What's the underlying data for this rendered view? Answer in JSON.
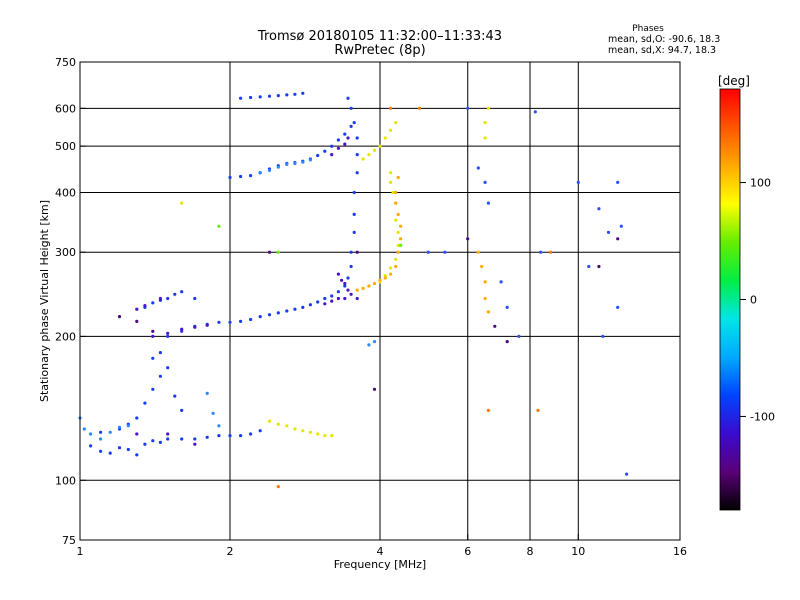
{
  "chart_data": {
    "type": "scatter",
    "title": "Tromsø 20180105 11:32:00–11:33:43",
    "subtitle": "RwPretec (8p)",
    "xlabel": "Frequency [MHz]",
    "ylabel": "Stationary phase Virtual Height [km]",
    "x_scale": "log",
    "y_scale": "log",
    "xlim": [
      1,
      16
    ],
    "ylim": [
      75,
      750
    ],
    "x_ticks": [
      1,
      2,
      4,
      6,
      8,
      10,
      16
    ],
    "y_ticks": [
      75,
      100,
      200,
      300,
      400,
      500,
      600,
      750
    ],
    "x_gridlines": [
      2,
      4,
      6,
      8,
      10
    ],
    "y_gridlines": [
      100,
      200,
      300,
      400,
      500,
      600
    ],
    "grid": true,
    "phases_info": {
      "heading": "Phases",
      "line_o": "mean, sd,O: -90.6, 18.3",
      "line_x": "mean, sd,X:  94.7, 18.3"
    },
    "colorbar": {
      "label": "[deg]",
      "range": [
        -180,
        180
      ],
      "ticks": [
        100,
        0,
        -100
      ],
      "colormap": [
        "#000000",
        "#5a0078",
        "#3a0bd0",
        "#0044ff",
        "#00aaff",
        "#00e6e6",
        "#00ee44",
        "#66ee00",
        "#ffff00",
        "#ffaa00",
        "#ff5500",
        "#ff0000"
      ]
    },
    "series": [
      {
        "phase_deg": -110,
        "color": "#1a3cf0",
        "points": [
          [
            1.05,
            118
          ],
          [
            1.1,
            115
          ],
          [
            1.15,
            114
          ],
          [
            1.2,
            117
          ],
          [
            1.25,
            116
          ],
          [
            1.3,
            113
          ],
          [
            1.35,
            119
          ],
          [
            1.4,
            121
          ],
          [
            1.45,
            120
          ],
          [
            1.5,
            122
          ],
          [
            1.6,
            122
          ],
          [
            1.7,
            122
          ],
          [
            1.8,
            123
          ],
          [
            1.9,
            124
          ],
          [
            2.0,
            124
          ],
          [
            2.1,
            124
          ],
          [
            2.2,
            125
          ],
          [
            2.3,
            127
          ],
          [
            1.1,
            126
          ],
          [
            1.2,
            128
          ],
          [
            1.25,
            131
          ],
          [
            1.3,
            135
          ],
          [
            1.35,
            145
          ],
          [
            1.4,
            155
          ],
          [
            1.45,
            165
          ],
          [
            1.5,
            172
          ],
          [
            1.55,
            150
          ],
          [
            1.6,
            140
          ],
          [
            1.4,
            180
          ],
          [
            1.45,
            185
          ],
          [
            1.5,
            200
          ],
          [
            1.6,
            205
          ],
          [
            1.7,
            210
          ],
          [
            1.8,
            212
          ],
          [
            1.9,
            214
          ],
          [
            2.0,
            214
          ],
          [
            2.1,
            215
          ],
          [
            2.2,
            217
          ],
          [
            2.3,
            220
          ],
          [
            2.4,
            222
          ],
          [
            2.5,
            224
          ],
          [
            2.6,
            226
          ],
          [
            2.7,
            228
          ],
          [
            2.8,
            230
          ],
          [
            2.9,
            233
          ],
          [
            3.0,
            236
          ],
          [
            3.1,
            240
          ],
          [
            3.2,
            243
          ],
          [
            3.3,
            248
          ],
          [
            3.4,
            255
          ],
          [
            3.45,
            265
          ],
          [
            3.5,
            280
          ],
          [
            3.5,
            300
          ],
          [
            3.55,
            330
          ],
          [
            3.55,
            360
          ],
          [
            3.55,
            400
          ],
          [
            3.6,
            440
          ],
          [
            3.6,
            480
          ],
          [
            3.6,
            520
          ],
          [
            3.55,
            560
          ],
          [
            3.5,
            600
          ],
          [
            3.45,
            630
          ],
          [
            1.35,
            230
          ],
          [
            1.4,
            235
          ],
          [
            1.45,
            238
          ],
          [
            1.5,
            240
          ],
          [
            1.55,
            245
          ],
          [
            1.6,
            248
          ],
          [
            1.7,
            240
          ],
          [
            2.0,
            430
          ],
          [
            2.1,
            432
          ],
          [
            2.2,
            434
          ],
          [
            2.3,
            440
          ],
          [
            2.4,
            448
          ],
          [
            2.5,
            455
          ],
          [
            2.6,
            460
          ],
          [
            2.7,
            462
          ],
          [
            2.8,
            465
          ],
          [
            2.9,
            470
          ],
          [
            3.0,
            478
          ],
          [
            3.1,
            488
          ],
          [
            3.2,
            500
          ],
          [
            3.3,
            515
          ],
          [
            3.4,
            530
          ],
          [
            3.5,
            550
          ],
          [
            2.1,
            630
          ],
          [
            2.2,
            632
          ],
          [
            2.3,
            634
          ],
          [
            2.4,
            636
          ],
          [
            2.5,
            638
          ],
          [
            2.6,
            640
          ],
          [
            2.7,
            642
          ],
          [
            2.8,
            645
          ]
        ]
      },
      {
        "phase_deg": -130,
        "color": "#4a14c8",
        "points": [
          [
            1.3,
            125
          ],
          [
            1.5,
            125
          ],
          [
            1.7,
            119
          ],
          [
            1.4,
            200
          ],
          [
            1.5,
            203
          ],
          [
            1.6,
            207
          ],
          [
            1.7,
            209
          ],
          [
            1.8,
            211
          ],
          [
            1.3,
            228
          ],
          [
            1.35,
            232
          ],
          [
            1.45,
            240
          ],
          [
            3.2,
            480
          ],
          [
            3.3,
            495
          ],
          [
            3.4,
            505
          ],
          [
            3.45,
            520
          ],
          [
            3.3,
            270
          ],
          [
            3.35,
            262
          ],
          [
            3.4,
            258
          ],
          [
            3.45,
            250
          ],
          [
            3.5,
            245
          ],
          [
            3.6,
            240
          ],
          [
            3.3,
            240
          ],
          [
            3.2,
            237
          ],
          [
            3.1,
            234
          ],
          [
            3.4,
            240
          ]
        ]
      },
      {
        "phase_deg": -70,
        "color": "#2a88ff",
        "points": [
          [
            1.0,
            135
          ],
          [
            1.02,
            128
          ],
          [
            1.05,
            125
          ],
          [
            1.1,
            122
          ],
          [
            1.15,
            126
          ],
          [
            1.2,
            129
          ],
          [
            1.25,
            130
          ],
          [
            2.3,
            440
          ],
          [
            2.4,
            445
          ],
          [
            2.5,
            452
          ],
          [
            2.6,
            458
          ],
          [
            2.7,
            460
          ],
          [
            2.8,
            463
          ],
          [
            2.9,
            468
          ],
          [
            1.8,
            152
          ],
          [
            1.85,
            138
          ],
          [
            1.9,
            130
          ],
          [
            3.8,
            192
          ],
          [
            3.9,
            195
          ]
        ]
      },
      {
        "phase_deg": 95,
        "color": "#e6e600",
        "points": [
          [
            2.4,
            133
          ],
          [
            2.5,
            131
          ],
          [
            2.6,
            130
          ],
          [
            2.7,
            128
          ],
          [
            2.8,
            127
          ],
          [
            2.9,
            126
          ],
          [
            3.0,
            125
          ],
          [
            3.1,
            124
          ],
          [
            3.2,
            124
          ],
          [
            3.7,
            470
          ],
          [
            3.8,
            480
          ],
          [
            3.9,
            490
          ],
          [
            4.0,
            500
          ],
          [
            4.1,
            520
          ],
          [
            4.2,
            540
          ],
          [
            4.3,
            560
          ],
          [
            4.0,
            260
          ],
          [
            4.1,
            268
          ],
          [
            4.2,
            278
          ],
          [
            4.3,
            290
          ],
          [
            4.35,
            310
          ],
          [
            4.35,
            330
          ],
          [
            4.3,
            350
          ],
          [
            4.3,
            380
          ],
          [
            4.25,
            400
          ],
          [
            4.2,
            420
          ],
          [
            4.2,
            440
          ],
          [
            1.6,
            380
          ],
          [
            6.5,
            560
          ],
          [
            6.6,
            600
          ],
          [
            6.5,
            520
          ]
        ]
      },
      {
        "phase_deg": 125,
        "color": "#ffaa00",
        "points": [
          [
            3.6,
            250
          ],
          [
            3.7,
            252
          ],
          [
            3.8,
            255
          ],
          [
            3.9,
            258
          ],
          [
            4.0,
            262
          ],
          [
            4.1,
            265
          ],
          [
            4.2,
            270
          ],
          [
            4.3,
            280
          ],
          [
            4.35,
            300
          ],
          [
            4.4,
            320
          ],
          [
            4.4,
            340
          ],
          [
            4.35,
            360
          ],
          [
            4.3,
            380
          ],
          [
            4.3,
            400
          ],
          [
            4.35,
            430
          ],
          [
            6.5,
            260
          ],
          [
            6.5,
            240
          ],
          [
            6.6,
            225
          ],
          [
            6.3,
            300
          ],
          [
            6.4,
            280
          ]
        ]
      },
      {
        "phase_deg": 30,
        "color": "#66ee00",
        "points": [
          [
            1.9,
            340
          ],
          [
            2.5,
            300
          ],
          [
            4.4,
            310
          ]
        ]
      },
      {
        "phase_deg": -150,
        "color": "#4a0a7a",
        "points": [
          [
            1.2,
            220
          ],
          [
            1.3,
            215
          ],
          [
            1.4,
            205
          ],
          [
            2.4,
            300
          ],
          [
            3.6,
            300
          ],
          [
            3.9,
            155
          ],
          [
            6.0,
            320
          ],
          [
            6.8,
            210
          ],
          [
            7.2,
            195
          ],
          [
            11.0,
            280
          ],
          [
            12.0,
            320
          ]
        ]
      },
      {
        "phase_deg": -100,
        "color": "#2b50f8",
        "points": [
          [
            6.0,
            600
          ],
          [
            6.3,
            450
          ],
          [
            6.5,
            420
          ],
          [
            6.6,
            380
          ],
          [
            7.0,
            260
          ],
          [
            7.2,
            230
          ],
          [
            7.6,
            200
          ],
          [
            8.2,
            590
          ],
          [
            8.4,
            300
          ],
          [
            10.0,
            420
          ],
          [
            10.5,
            280
          ],
          [
            11.0,
            370
          ],
          [
            11.5,
            330
          ],
          [
            12.0,
            420
          ],
          [
            12.2,
            340
          ],
          [
            12.0,
            230
          ],
          [
            11.2,
            200
          ],
          [
            5.0,
            300
          ],
          [
            5.4,
            300
          ],
          [
            12.5,
            103
          ]
        ]
      },
      {
        "phase_deg": 140,
        "color": "#ff7700",
        "points": [
          [
            4.8,
            600
          ],
          [
            6.6,
            140
          ],
          [
            8.3,
            140
          ],
          [
            4.2,
            600
          ],
          [
            2.5,
            97
          ],
          [
            8.8,
            300
          ]
        ]
      }
    ]
  }
}
